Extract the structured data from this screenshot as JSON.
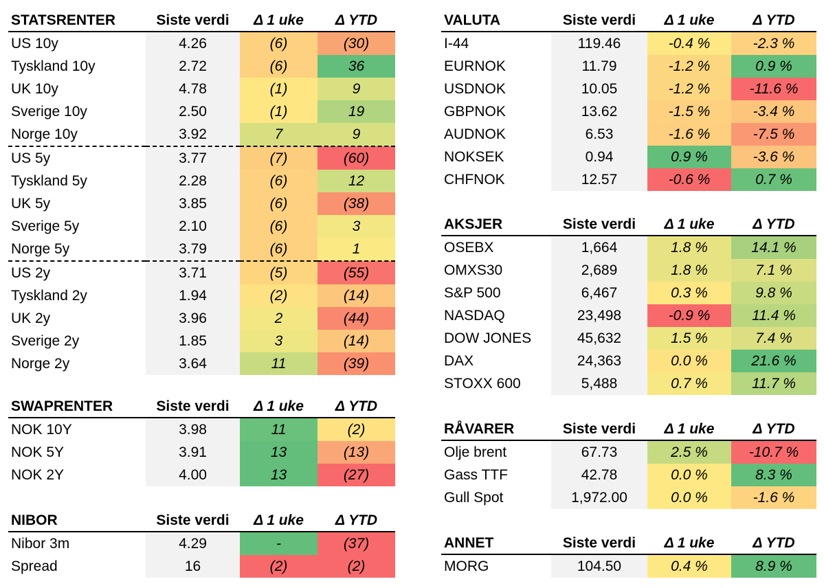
{
  "columns": {
    "last": "Siste verdi",
    "week": "Δ 1 uke",
    "ytd": "Δ YTD"
  },
  "tables": [
    {
      "title": "STATSRENTER",
      "group_breaks": [
        4,
        9
      ],
      "rows": [
        {
          "name": "US 10y",
          "value": "4.26",
          "week": "(6)",
          "week_color": "#fdd17f",
          "ytd": "(30)",
          "ytd_color": "#f9a473"
        },
        {
          "name": "Tyskland 10y",
          "value": "2.72",
          "week": "(6)",
          "week_color": "#fdd17f",
          "ytd": "36",
          "ytd_color": "#63be7b"
        },
        {
          "name": "UK 10y",
          "value": "4.78",
          "week": "(1)",
          "week_color": "#fee682",
          "ytd": "9",
          "ytd_color": "#d9e082"
        },
        {
          "name": "Sverige 10y",
          "value": "2.50",
          "week": "(1)",
          "week_color": "#fee682",
          "ytd": "19",
          "ytd_color": "#b0d47f"
        },
        {
          "name": "Norge 10y",
          "value": "3.92",
          "week": "7",
          "week_color": "#d8df81",
          "ytd": "9",
          "ytd_color": "#d9e082"
        },
        {
          "name": "US 5y",
          "value": "3.77",
          "week": "(7)",
          "week_color": "#fdcd7e",
          "ytd": "(60)",
          "ytd_color": "#f8696b"
        },
        {
          "name": "Tyskland 5y",
          "value": "2.28",
          "week": "(6)",
          "week_color": "#fdd17f",
          "ytd": "12",
          "ytd_color": "#cddd82"
        },
        {
          "name": "UK 5y",
          "value": "3.85",
          "week": "(6)",
          "week_color": "#fdd17f",
          "ytd": "(38)",
          "ytd_color": "#f99270"
        },
        {
          "name": "Sverige 5y",
          "value": "2.10",
          "week": "(6)",
          "week_color": "#fdd17f",
          "ytd": "3",
          "ytd_color": "#f2e783"
        },
        {
          "name": "Norge 5y",
          "value": "3.79",
          "week": "(6)",
          "week_color": "#fdd17f",
          "ytd": "1",
          "ytd_color": "#fbe983"
        },
        {
          "name": "US 2y",
          "value": "3.71",
          "week": "(5)",
          "week_color": "#fed57f",
          "ytd": "(55)",
          "ytd_color": "#f8736d"
        },
        {
          "name": "Tyskland 2y",
          "value": "1.94",
          "week": "(2)",
          "week_color": "#fee182",
          "ytd": "(14)",
          "ytd_color": "#fcc67c"
        },
        {
          "name": "UK 2y",
          "value": "3.96",
          "week": "2",
          "week_color": "#f2e783",
          "ytd": "(44)",
          "ytd_color": "#f9886f"
        },
        {
          "name": "Sverige 2y",
          "value": "1.85",
          "week": "3",
          "week_color": "#eee683",
          "ytd": "(14)",
          "ytd_color": "#fcc67c"
        },
        {
          "name": "Norge 2y",
          "value": "3.64",
          "week": "11",
          "week_color": "#c8db81",
          "ytd": "(39)",
          "ytd_color": "#f99070"
        }
      ]
    },
    {
      "title": "SWAPRENTER",
      "rows": [
        {
          "name": "NOK 10Y",
          "value": "3.98",
          "week": "11",
          "week_color": "#6ac17b",
          "ytd": "(2)",
          "ytd_color": "#fee282"
        },
        {
          "name": "NOK 5Y",
          "value": "3.91",
          "week": "13",
          "week_color": "#63be7b",
          "ytd": "(13)",
          "ytd_color": "#fba676"
        },
        {
          "name": "NOK 2Y",
          "value": "4.00",
          "week": "13",
          "week_color": "#63be7b",
          "ytd": "(27)",
          "ytd_color": "#f8696b"
        }
      ]
    },
    {
      "title": "NIBOR",
      "rows": [
        {
          "name": "Nibor 3m",
          "value": "4.29",
          "week": "-",
          "week_color": "#63be7b",
          "ytd": "(37)",
          "ytd_color": "#f8696b"
        },
        {
          "name": "Spread",
          "value": "16",
          "week": "(2)",
          "week_color": "#f8696b",
          "ytd": "(2)",
          "ytd_color": "#f8696b"
        }
      ]
    },
    {
      "title": "VALUTA",
      "rows": [
        {
          "name": "I-44",
          "value": "119.46",
          "week": "-0.4 %",
          "week_color": "#fee883",
          "ytd": "-2.3 %",
          "ytd_color": "#fdd17f"
        },
        {
          "name": "EURNOK",
          "value": "11.79",
          "week": "-1.2 %",
          "week_color": "#fdd780",
          "ytd": "0.9 %",
          "ytd_color": "#63be7b"
        },
        {
          "name": "USDNOK",
          "value": "10.05",
          "week": "-1.2 %",
          "week_color": "#fdd780",
          "ytd": "-11.6 %",
          "ytd_color": "#f8696b"
        },
        {
          "name": "GBPNOK",
          "value": "13.62",
          "week": "-1.5 %",
          "week_color": "#fdd17f",
          "ytd": "-3.4 %",
          "ytd_color": "#fcc57c"
        },
        {
          "name": "AUDNOK",
          "value": "6.53",
          "week": "-1.6 %",
          "week_color": "#fdcf7e",
          "ytd": "-7.5 %",
          "ytd_color": "#fa9873"
        },
        {
          "name": "NOKSEK",
          "value": "0.94",
          "week": "0.9 %",
          "week_color": "#63be7b",
          "ytd": "-3.6 %",
          "ytd_color": "#fcc37c"
        },
        {
          "name": "CHFNOK",
          "value": "12.57",
          "week": "-0.6 %",
          "week_color": "#f8696b",
          "ytd": "0.7 %",
          "ytd_color": "#69c07b"
        }
      ]
    },
    {
      "title": "AKSJER",
      "rows": [
        {
          "name": "OSEBX",
          "value": "1,664",
          "week": "1.8 %",
          "week_color": "#e8e382",
          "ytd": "14.1 %",
          "ytd_color": "#a7d17e"
        },
        {
          "name": "OMXS30",
          "value": "2,689",
          "week": "1.8 %",
          "week_color": "#e8e382",
          "ytd": "7.1 %",
          "ytd_color": "#dde082"
        },
        {
          "name": "S&P 500",
          "value": "6,467",
          "week": "0.3 %",
          "week_color": "#fee683",
          "ytd": "9.8 %",
          "ytd_color": "#c8db81"
        },
        {
          "name": "NASDAQ",
          "value": "23,498",
          "week": "-0.9 %",
          "week_color": "#f8696b",
          "ytd": "11.4 %",
          "ytd_color": "#bad780"
        },
        {
          "name": "DOW JONES",
          "value": "45,632",
          "week": "1.5 %",
          "week_color": "#ece582",
          "ytd": "7.4 %",
          "ytd_color": "#dbdf82"
        },
        {
          "name": "DAX",
          "value": "24,363",
          "week": "0.0 %",
          "week_color": "#fee282",
          "ytd": "21.6 %",
          "ytd_color": "#63be7b"
        },
        {
          "name": "STOXX 600",
          "value": "5,488",
          "week": "0.7 %",
          "week_color": "#f7e883",
          "ytd": "11.7 %",
          "ytd_color": "#b6d680"
        }
      ]
    },
    {
      "title": "RÅVARER",
      "rows": [
        {
          "name": "Olje brent",
          "value": "67.73",
          "week": "2.5 %",
          "week_color": "#c5da81",
          "ytd": "-10.7 %",
          "ytd_color": "#f8696b"
        },
        {
          "name": "Gass TTF",
          "value": "42.78",
          "week": "0.0 %",
          "week_color": "#fde883",
          "ytd": "8.3 %",
          "ytd_color": "#63be7b"
        },
        {
          "name": "Gull Spot",
          "value": "1,972.00",
          "week": "0.0 %",
          "week_color": "#fde883",
          "ytd": "-1.6 %",
          "ytd_color": "#fdd37f"
        }
      ]
    },
    {
      "title": "ANNET",
      "rows": [
        {
          "name": "MORG",
          "value": "104.50",
          "week": "0.4 %",
          "week_color": "#fee883",
          "ytd": "8.9 %",
          "ytd_color": "#63be7b"
        }
      ]
    }
  ]
}
